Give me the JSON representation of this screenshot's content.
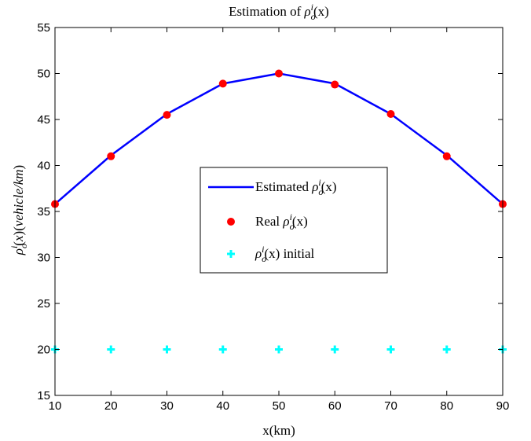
{
  "chart_data": {
    "type": "line",
    "title": "Estimation of ρ_o^i(x)",
    "xlabel": "x(km)",
    "ylabel": "ρ_o^i(x)(vehicle/km)",
    "xlim": [
      10,
      90
    ],
    "ylim": [
      15,
      55
    ],
    "x_ticks": [
      10,
      20,
      30,
      40,
      50,
      60,
      70,
      80,
      90
    ],
    "y_ticks": [
      15,
      20,
      25,
      30,
      35,
      40,
      45,
      50,
      55
    ],
    "grid": false,
    "legend_position": "center",
    "x": [
      10,
      20,
      30,
      40,
      50,
      60,
      70,
      80,
      90
    ],
    "series": [
      {
        "name": "Estimated ρ_o^i(x)",
        "style": "line",
        "color": "#0000ff",
        "values": [
          35.8,
          41.1,
          45.6,
          48.9,
          50.0,
          48.9,
          45.6,
          41.1,
          35.8
        ]
      },
      {
        "name": "Real ρ_o^i(x)",
        "style": "markers-circle",
        "color": "#ff0000",
        "values": [
          35.8,
          41.0,
          45.5,
          48.9,
          50.0,
          48.8,
          45.6,
          41.0,
          35.8
        ]
      },
      {
        "name": "ρ_o^i(x) initial",
        "style": "markers-plus",
        "color": "#00ffff",
        "values": [
          20,
          20,
          20,
          20,
          20,
          20,
          20,
          20,
          20
        ]
      }
    ],
    "legend": {
      "entries": [
        {
          "prefix": "Estimated ",
          "symbol": "ρ",
          "sub": "o",
          "sup": "i",
          "arg": "(x)",
          "suffix": ""
        },
        {
          "prefix": "Real ",
          "symbol": "ρ",
          "sub": "o",
          "sup": "i",
          "arg": "(x)",
          "suffix": ""
        },
        {
          "prefix": "",
          "symbol": "ρ",
          "sub": "o",
          "sup": "i",
          "arg": "(x)",
          "suffix": " initial"
        }
      ]
    }
  }
}
